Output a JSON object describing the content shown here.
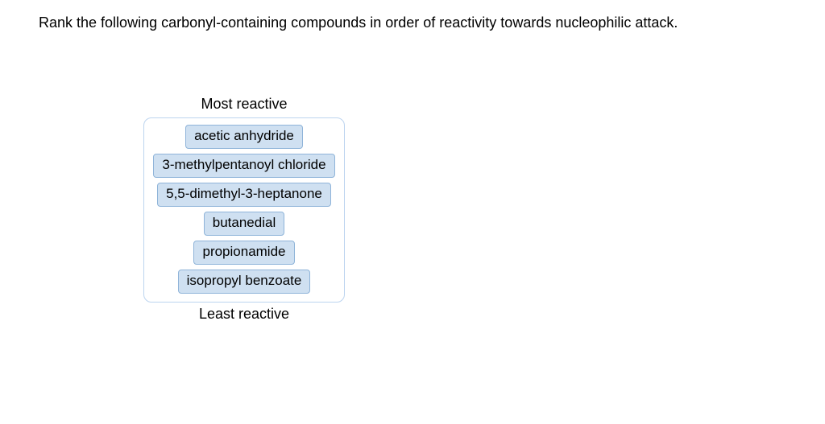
{
  "question": "Rank the following carbonyl-containing compounds in order of reactivity towards nucleophilic attack.",
  "ranking": {
    "top_label": "Most reactive",
    "bottom_label": "Least reactive",
    "items": [
      "acetic anhydride",
      "3-methylpentanoyl chloride",
      "5,5-dimethyl-3-heptanone",
      "butanedial",
      "propionamide",
      "isopropyl benzoate"
    ],
    "chip_bg": "#cfe0f1",
    "chip_border": "#8fb4d9",
    "box_border": "#bcd4ef",
    "font_size_question": 18,
    "font_size_chip": 17
  }
}
